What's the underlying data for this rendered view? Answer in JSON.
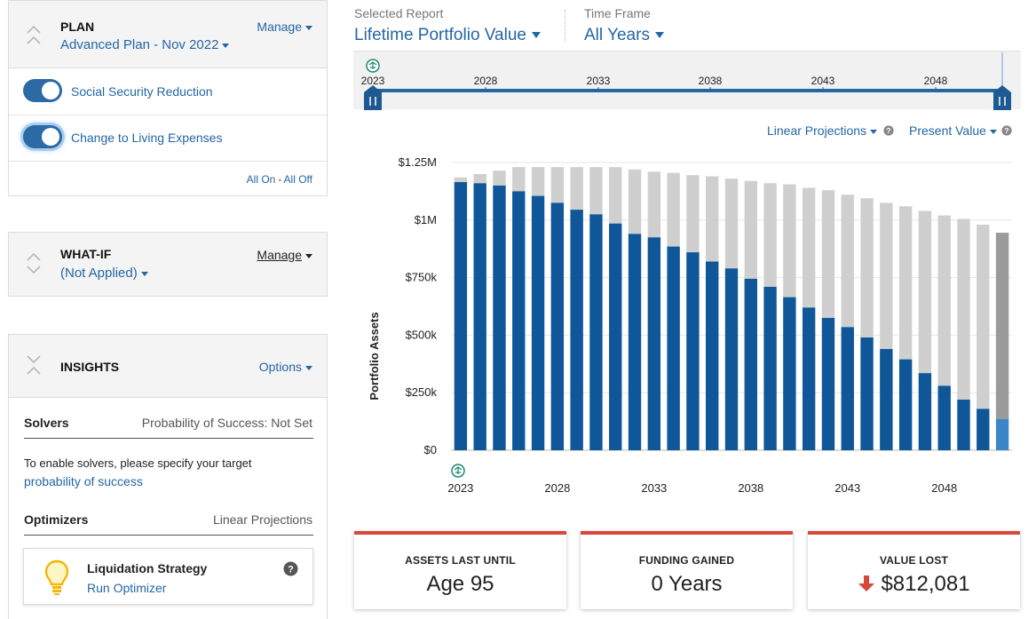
{
  "plan": {
    "title": "PLAN",
    "plan_name": "Advanced Plan - Nov 2022",
    "manage_label": "Manage",
    "toggles": [
      {
        "label": "Social Security Reduction",
        "on": true
      },
      {
        "label": "Change to Living Expenses",
        "on": true
      }
    ],
    "all_on": "All On",
    "separator": "•",
    "all_off": "All Off"
  },
  "whatif": {
    "title": "WHAT-IF",
    "status": "(Not Applied)",
    "manage_label": "Manage"
  },
  "insights": {
    "title": "INSIGHTS",
    "options_label": "Options",
    "solvers_label": "Solvers",
    "solvers_status": "Probability of Success: Not Set",
    "solvers_hint": "To enable solvers, please specify your target",
    "solvers_link": "probability of success",
    "optimizers_label": "Optimizers",
    "optimizers_mode": "Linear Projections",
    "optimizer_card": {
      "title": "Liquidation Strategy",
      "action": "Run Optimizer",
      "icon": "lightbulb-icon"
    }
  },
  "report": {
    "selected_label": "Selected Report",
    "selected_value": "Lifetime Portfolio Value",
    "timeframe_label": "Time Frame",
    "timeframe_value": "All Years"
  },
  "timeline": {
    "start_label": "2023",
    "ticks": [
      "2028",
      "2033",
      "2038",
      "2043",
      "2048"
    ]
  },
  "controls": {
    "projection": "Linear Projections",
    "value_mode": "Present Value"
  },
  "colors": {
    "accent": "#2366a4",
    "bar_primary": "#0f5799",
    "bar_secondary": "#cfcfcf",
    "bar_highlight": "#3b86c8",
    "bar_highlight_bg": "#9a9a9a",
    "alert": "#d9463b"
  },
  "chart_data": {
    "type": "bar",
    "stacked": true,
    "ylabel": "Portfolio Assets",
    "ylim": [
      0,
      1250000
    ],
    "yticks": [
      0,
      250000,
      500000,
      750000,
      1000000,
      1250000
    ],
    "ytick_labels": [
      "$0",
      "$250k",
      "$500k",
      "$750k",
      "$1M",
      "$1.25M"
    ],
    "xtick_labels": [
      "2023",
      "2028",
      "2033",
      "2038",
      "2043",
      "2048"
    ],
    "categories": [
      2023,
      2024,
      2025,
      2026,
      2027,
      2028,
      2029,
      2030,
      2031,
      2032,
      2033,
      2034,
      2035,
      2036,
      2037,
      2038,
      2039,
      2040,
      2041,
      2042,
      2043,
      2044,
      2045,
      2046,
      2047,
      2048,
      2049,
      2050,
      2051
    ],
    "series": [
      {
        "values": [
          1165000,
          1160000,
          1150000,
          1125000,
          1105000,
          1075000,
          1045000,
          1025000,
          985000,
          940000,
          925000,
          885000,
          860000,
          820000,
          790000,
          745000,
          710000,
          665000,
          620000,
          575000,
          535000,
          490000,
          440000,
          395000,
          335000,
          280000,
          220000,
          180000,
          135000
        ]
      },
      {
        "values": [
          20000,
          40000,
          65000,
          105000,
          125000,
          155000,
          185000,
          205000,
          245000,
          280000,
          285000,
          320000,
          335000,
          370000,
          390000,
          425000,
          450000,
          490000,
          520000,
          555000,
          575000,
          605000,
          635000,
          665000,
          705000,
          740000,
          785000,
          800000,
          810000
        ]
      }
    ],
    "grid": true
  },
  "cards": [
    {
      "title": "ASSETS LAST UNTIL",
      "value": "Age 95"
    },
    {
      "title": "FUNDING GAINED",
      "value": "0 Years"
    },
    {
      "title": "VALUE LOST",
      "value": "$812,081",
      "icon": "down-arrow-icon"
    }
  ]
}
